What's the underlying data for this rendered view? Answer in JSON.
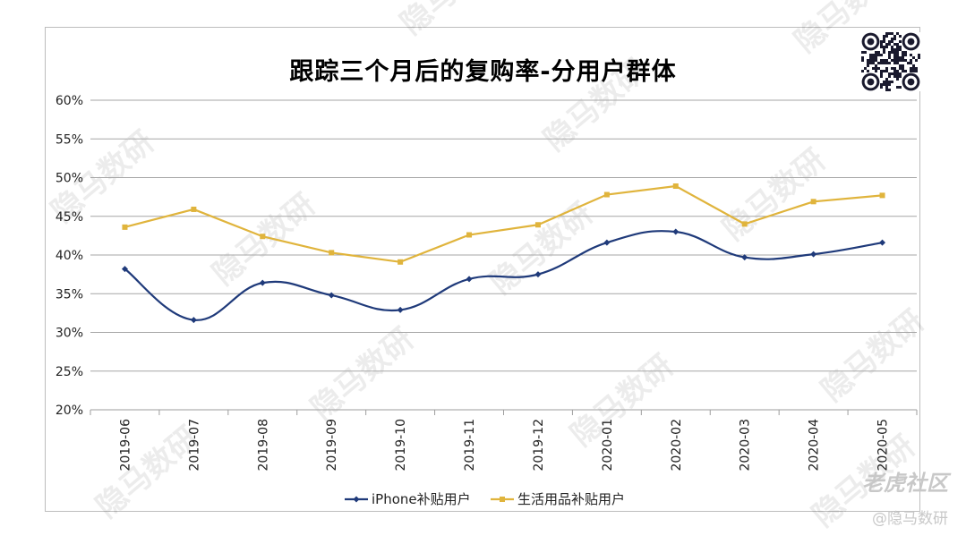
{
  "chart_data": {
    "type": "line",
    "title": "跟踪三个月后的复购率-分用户群体",
    "xlabel": "",
    "ylabel": "",
    "categories": [
      "2019-06",
      "2019-07",
      "2019-08",
      "2019-09",
      "2019-10",
      "2019-11",
      "2019-12",
      "2020-01",
      "2020-02",
      "2020-03",
      "2020-04",
      "2020-05"
    ],
    "ylim": [
      20,
      60
    ],
    "yticks": [
      "20%",
      "25%",
      "30%",
      "35%",
      "40%",
      "45%",
      "50%",
      "55%",
      "60%"
    ],
    "yticks_values": [
      20,
      25,
      30,
      35,
      40,
      45,
      50,
      55,
      60
    ],
    "grid": true,
    "legend_position": "bottom",
    "series": [
      {
        "name": "iPhone补贴用户",
        "color": "#1f3a7a",
        "smooth": true,
        "values": [
          38.2,
          31.6,
          36.4,
          34.8,
          32.9,
          36.9,
          37.5,
          41.6,
          43.0,
          39.7,
          40.1,
          41.6
        ]
      },
      {
        "name": "生活用品补贴用户",
        "color": "#e0b43c",
        "smooth": false,
        "values": [
          43.6,
          45.9,
          42.4,
          40.3,
          39.1,
          42.6,
          43.9,
          47.8,
          48.9,
          44.0,
          46.9,
          47.7
        ]
      }
    ]
  },
  "watermark": "隐马数研",
  "brand": {
    "community": "老虎社区",
    "author": "@隐马数研"
  }
}
